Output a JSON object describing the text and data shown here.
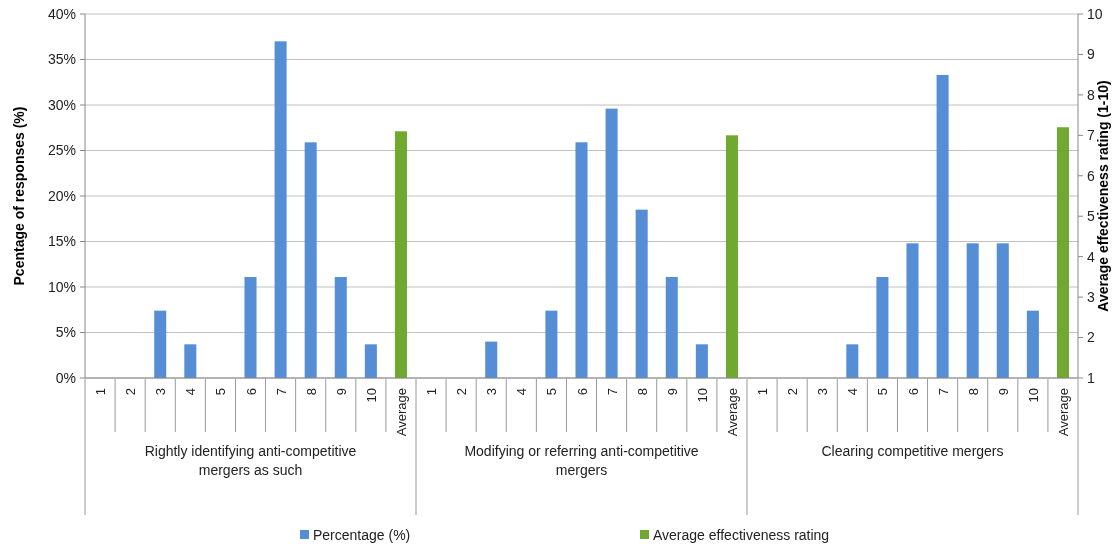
{
  "chart_data": {
    "type": "bar",
    "categories": [
      "1",
      "2",
      "3",
      "4",
      "5",
      "6",
      "7",
      "8",
      "9",
      "10",
      "Average",
      "1",
      "2",
      "3",
      "4",
      "5",
      "6",
      "7",
      "8",
      "9",
      "10",
      "Average",
      "1",
      "2",
      "3",
      "4",
      "5",
      "6",
      "7",
      "8",
      "9",
      "10",
      "Average"
    ],
    "series": [
      {
        "name": "Percentage (%)",
        "color": "#558ed5",
        "values": [
          0,
          0,
          7.4,
          3.7,
          0,
          11.1,
          37.0,
          25.9,
          11.1,
          3.7,
          null,
          0,
          0,
          4.0,
          0,
          7.4,
          25.9,
          29.6,
          18.5,
          11.1,
          3.7,
          null,
          0,
          0,
          0,
          3.7,
          11.1,
          14.8,
          33.3,
          14.8,
          14.8,
          7.4,
          null
        ]
      },
      {
        "name": "Average effectiveness rating",
        "color": "#70a830",
        "axis": "y2",
        "values": [
          null,
          null,
          null,
          null,
          null,
          null,
          null,
          null,
          null,
          null,
          7.1,
          null,
          null,
          null,
          null,
          null,
          null,
          null,
          null,
          null,
          null,
          7.0,
          null,
          null,
          null,
          null,
          null,
          null,
          null,
          null,
          null,
          null,
          7.2
        ]
      }
    ],
    "ylabel": "Pcentage of responses (%)",
    "y2label": "Average effectiveness rating (1-10)",
    "ylim": [
      0,
      40
    ],
    "yticks": [
      {
        "value": 0,
        "label": "0%"
      },
      {
        "value": 5,
        "label": "5%"
      },
      {
        "value": 10,
        "label": "10%"
      },
      {
        "value": 15,
        "label": "15%"
      },
      {
        "value": 20,
        "label": "20%"
      },
      {
        "value": 25,
        "label": "25%"
      },
      {
        "value": 30,
        "label": "30%"
      },
      {
        "value": 35,
        "label": "35%"
      },
      {
        "value": 40,
        "label": "40%"
      }
    ],
    "y2lim": [
      1,
      10
    ],
    "y2ticks": [
      1,
      2,
      3,
      4,
      5,
      6,
      7,
      8,
      9,
      10
    ],
    "annotations": [
      "Rightly identifying anti-competitive mergers as such",
      "Modifying or referring anti-competitive mergers",
      "Clearing competitive mergers"
    ],
    "grid": "y",
    "legend": "bottom"
  }
}
